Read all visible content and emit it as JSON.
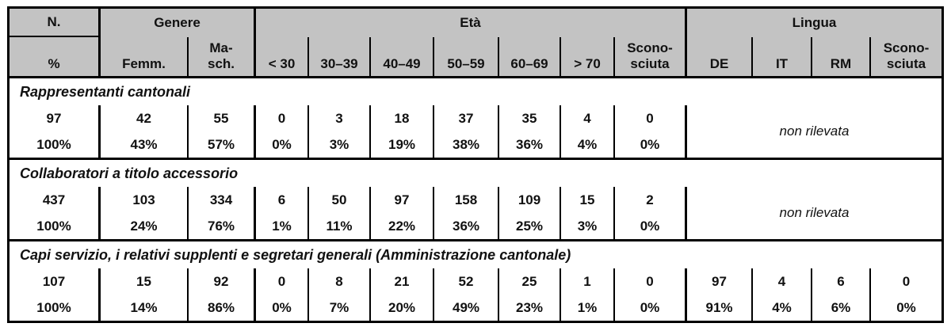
{
  "colors": {
    "header_bg": "#c3c3c3",
    "border": "#000000",
    "text": "#111111"
  },
  "header": {
    "n_label": "N.",
    "groups": [
      {
        "label": "Genere"
      },
      {
        "label": "Età"
      },
      {
        "label": "Lingua"
      }
    ],
    "subheaders": [
      "%",
      "Femm.",
      "Ma-\nsch.",
      "< 30",
      "30–39",
      "40–49",
      "50–59",
      "60–69",
      "> 70",
      "Scono-\nsciuta",
      "DE",
      "IT",
      "RM",
      "Scono-\nsciuta"
    ]
  },
  "sections": [
    {
      "title": "Rappresentanti cantonali",
      "counts": [
        "97",
        "42",
        "55",
        "0",
        "3",
        "18",
        "37",
        "35",
        "4",
        "0"
      ],
      "percents": [
        "100%",
        "43%",
        "57%",
        "0%",
        "3%",
        "19%",
        "38%",
        "36%",
        "4%",
        "0%"
      ],
      "lingua_note": "non rilevata"
    },
    {
      "title": "Collaboratori a titolo accessorio",
      "counts": [
        "437",
        "103",
        "334",
        "6",
        "50",
        "97",
        "158",
        "109",
        "15",
        "2"
      ],
      "percents": [
        "100%",
        "24%",
        "76%",
        "1%",
        "11%",
        "22%",
        "36%",
        "25%",
        "3%",
        "0%"
      ],
      "lingua_note": "non rilevata"
    },
    {
      "title": "Capi servizio, i relativi supplenti e segretari generali (Amministrazione cantonale)",
      "counts": [
        "107",
        "15",
        "92",
        "0",
        "8",
        "21",
        "52",
        "25",
        "1",
        "0",
        "97",
        "4",
        "6",
        "0"
      ],
      "percents": [
        "100%",
        "14%",
        "86%",
        "0%",
        "7%",
        "20%",
        "49%",
        "23%",
        "1%",
        "0%",
        "91%",
        "4%",
        "6%",
        "0%"
      ]
    }
  ]
}
